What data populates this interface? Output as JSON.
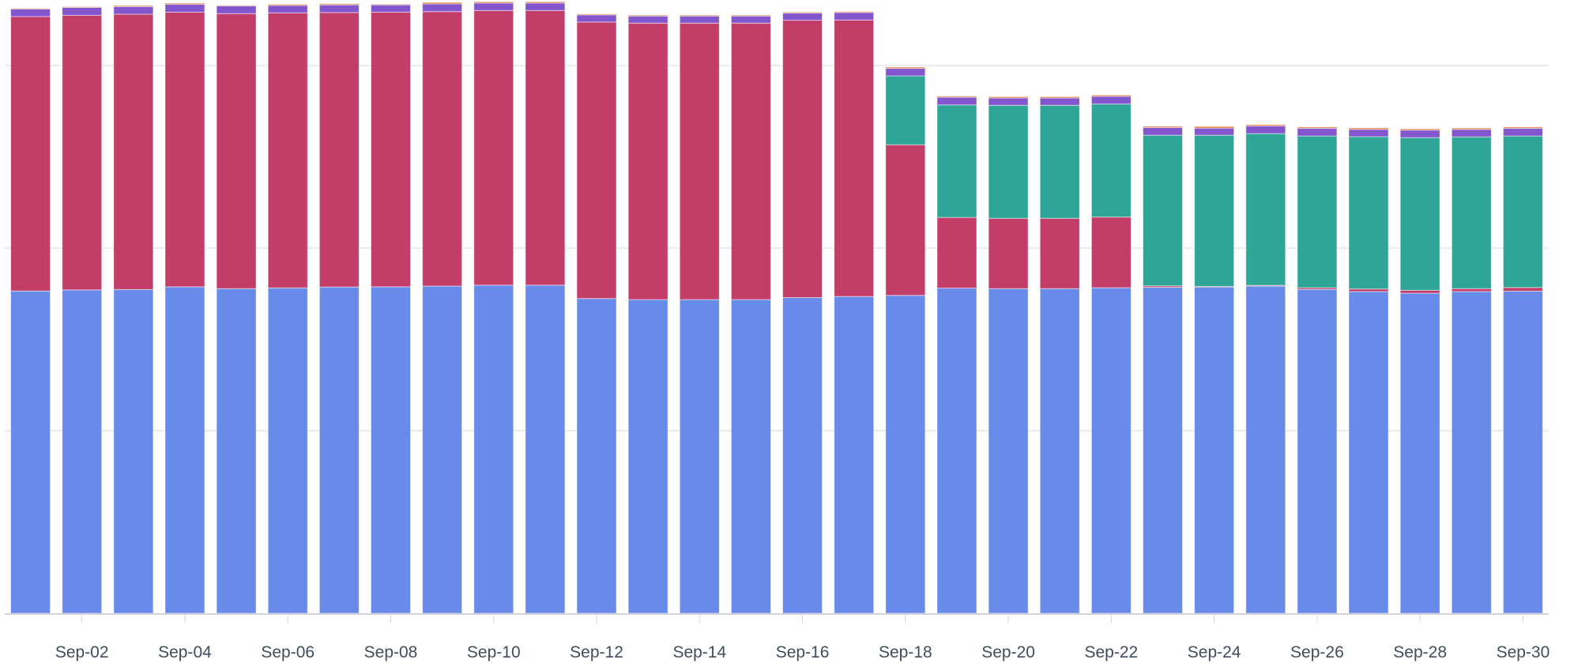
{
  "chart_data": {
    "type": "bar",
    "stacked": true,
    "title": "",
    "xlabel": "",
    "ylabel": "",
    "ylim": [
      0,
      3.35
    ],
    "grid": true,
    "gridlines_at": [
      1,
      2,
      3
    ],
    "legend": "none",
    "categories": [
      "Sep-01",
      "Sep-02",
      "Sep-03",
      "Sep-04",
      "Sep-05",
      "Sep-06",
      "Sep-07",
      "Sep-08",
      "Sep-09",
      "Sep-10",
      "Sep-11",
      "Sep-12",
      "Sep-13",
      "Sep-14",
      "Sep-15",
      "Sep-16",
      "Sep-17",
      "Sep-18",
      "Sep-19",
      "Sep-20",
      "Sep-21",
      "Sep-22",
      "Sep-23",
      "Sep-24",
      "Sep-25",
      "Sep-26",
      "Sep-27",
      "Sep-28",
      "Sep-29",
      "Sep-30"
    ],
    "tick_labels": [
      "Sep-02",
      "Sep-04",
      "Sep-06",
      "Sep-08",
      "Sep-10",
      "Sep-12",
      "Sep-14",
      "Sep-16",
      "Sep-18",
      "Sep-20",
      "Sep-22",
      "Sep-24",
      "Sep-26",
      "Sep-28",
      "Sep-30"
    ],
    "series": [
      {
        "color": "#688ae8",
        "values": [
          1.765,
          1.771,
          1.773,
          1.788,
          1.778,
          1.782,
          1.787,
          1.788,
          1.792,
          1.797,
          1.797,
          1.724,
          1.718,
          1.718,
          1.718,
          1.729,
          1.735,
          1.741,
          1.781,
          1.778,
          1.778,
          1.783,
          1.785,
          1.787,
          1.792,
          1.774,
          1.762,
          1.753,
          1.762,
          1.764
        ]
      },
      {
        "color": "#c33d69",
        "values": [
          1.503,
          1.504,
          1.508,
          1.504,
          1.506,
          1.506,
          1.503,
          1.504,
          1.503,
          1.504,
          1.504,
          1.514,
          1.514,
          1.514,
          1.514,
          1.519,
          1.514,
          0.825,
          0.387,
          0.385,
          0.385,
          0.387,
          0.008,
          0.003,
          0.004,
          0.009,
          0.014,
          0.016,
          0.016,
          0.02
        ]
      },
      {
        "color": "#2ea597",
        "values": [
          0,
          0,
          0,
          0,
          0,
          0,
          0,
          0,
          0,
          0,
          0,
          0,
          0,
          0,
          0,
          0,
          0,
          0.377,
          0.616,
          0.619,
          0.619,
          0.619,
          0.825,
          0.828,
          0.831,
          0.831,
          0.834,
          0.836,
          0.831,
          0.83
        ]
      },
      {
        "color": "#8456ce",
        "values": [
          0.041,
          0.043,
          0.041,
          0.043,
          0.042,
          0.041,
          0.042,
          0.04,
          0.042,
          0.041,
          0.041,
          0.039,
          0.039,
          0.039,
          0.039,
          0.039,
          0.041,
          0.041,
          0.042,
          0.04,
          0.04,
          0.042,
          0.042,
          0.039,
          0.042,
          0.042,
          0.04,
          0.041,
          0.041,
          0.042
        ]
      },
      {
        "color": "#e07941",
        "values": [
          0.004,
          0.004,
          0.006,
          0.006,
          0.004,
          0.006,
          0.006,
          0.004,
          0.008,
          0.007,
          0.007,
          0.005,
          0.005,
          0.005,
          0.005,
          0.005,
          0.005,
          0.007,
          0.006,
          0.007,
          0.007,
          0.007,
          0.007,
          0.009,
          0.007,
          0.007,
          0.008,
          0.007,
          0.007,
          0.007
        ]
      }
    ],
    "colors": {
      "grid": "#e9ebed",
      "axis": "#d1d5db",
      "tick_text": "#414d5c"
    }
  }
}
